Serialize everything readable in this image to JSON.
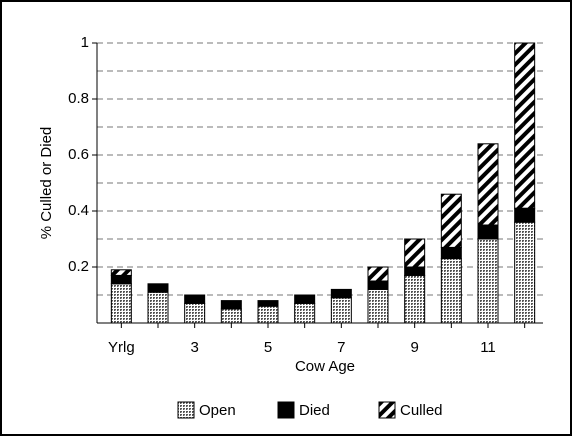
{
  "chart_data": {
    "type": "stacked-bar",
    "x_label": "Cow Age",
    "y_label": "% Culled or Died",
    "categories": [
      "Yrlg",
      null,
      "3",
      null,
      "5",
      null,
      "7",
      null,
      "9",
      null,
      "11",
      null
    ],
    "series": [
      {
        "name": "Open",
        "color": "#8c8c8c",
        "pattern": "dots",
        "values": [
          0.14,
          0.11,
          0.07,
          0.05,
          0.06,
          0.07,
          0.09,
          0.12,
          0.17,
          0.23,
          0.3,
          0.36
        ]
      },
      {
        "name": "Died",
        "color": "#000000",
        "pattern": "solid",
        "values": [
          0.03,
          0.03,
          0.03,
          0.03,
          0.02,
          0.03,
          0.03,
          0.03,
          0.03,
          0.04,
          0.05,
          0.05
        ]
      },
      {
        "name": "Culled",
        "color": "#000000",
        "pattern": "stripes",
        "values": [
          0.02,
          0,
          0,
          0,
          0,
          0,
          0,
          0.05,
          0.1,
          0.19,
          0.29,
          0.59
        ]
      }
    ],
    "ylim": [
      0,
      1
    ],
    "yticks": [
      0.2,
      0.4,
      0.6,
      0.8,
      1
    ],
    "minor_yticks": [
      0.1,
      0.3,
      0.5,
      0.7,
      0.9
    ],
    "grid": true,
    "legend": "bottom"
  }
}
